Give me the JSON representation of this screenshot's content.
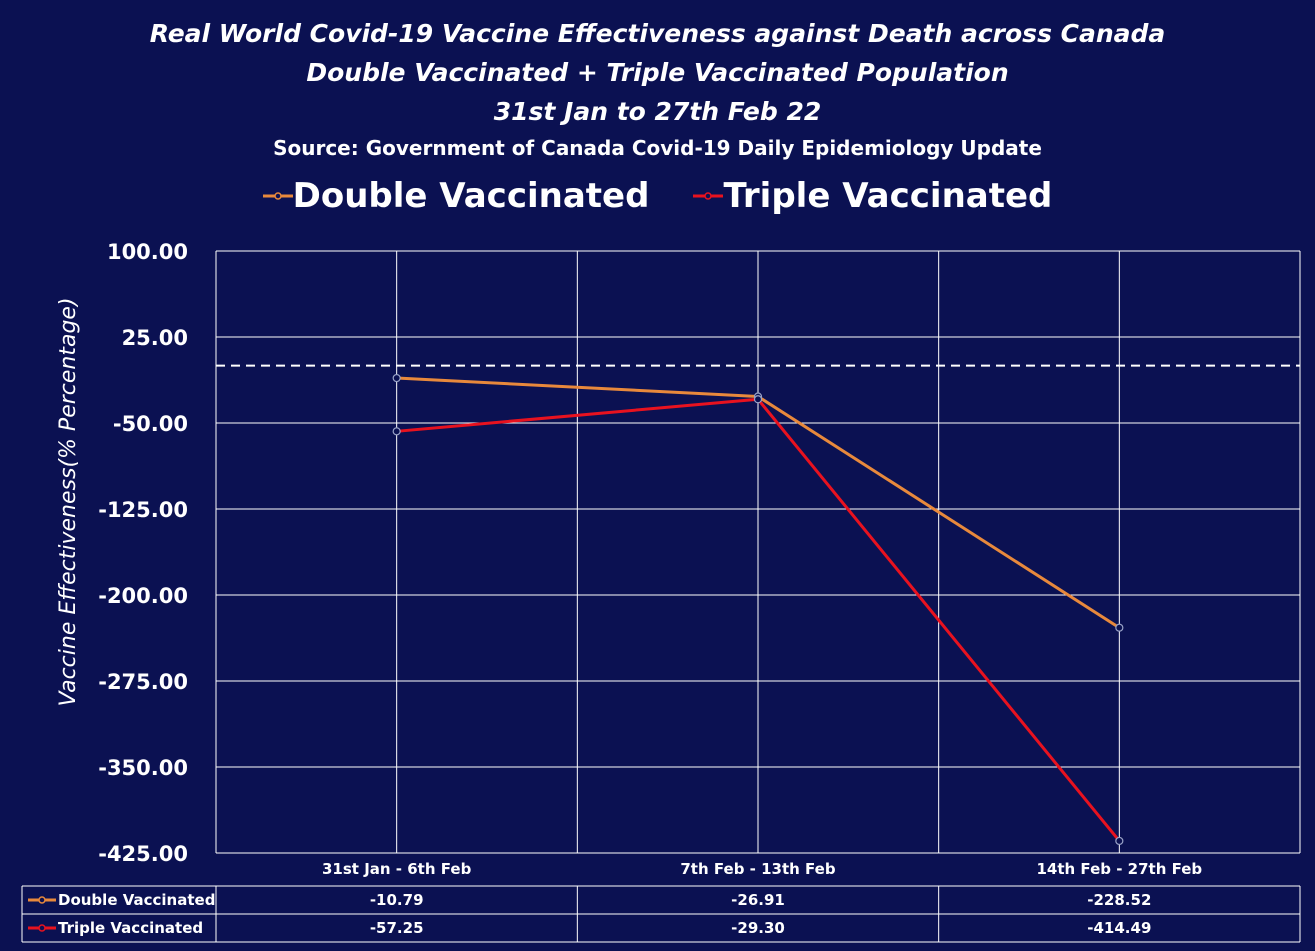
{
  "chart_data": {
    "type": "line",
    "title": "Real World Covid-19 Vaccine Effectiveness against Death across Canada",
    "title_line2": "Double Vaccinated + Triple Vaccinated Population",
    "title_line3": "31st Jan to 27th Feb 22",
    "subtitle": "Source: Government of Canada  Covid-19 Daily Epidemiology Update",
    "ylabel": "Vaccine Effectiveness(% Percentage)",
    "xlabel": "",
    "categories": [
      "31st Jan - 6th Feb",
      "7th Feb - 13th Feb",
      "14th Feb - 27th Feb"
    ],
    "series": [
      {
        "name": "Double Vaccinated",
        "color": "#e8893c",
        "values": [
          -10.79,
          -26.91,
          -228.52
        ],
        "labels": [
          "-10.79",
          "-26.91",
          "-228.52"
        ]
      },
      {
        "name": "Triple Vaccinated",
        "color": "#e8121f",
        "values": [
          -57.25,
          -29.3,
          -414.49
        ],
        "labels": [
          "-57.25",
          "-29.30",
          "-414.49"
        ]
      }
    ],
    "ylim": [
      -425,
      100
    ],
    "yticks": [
      100,
      25,
      -50,
      -125,
      -200,
      -275,
      -350,
      -425
    ],
    "ytick_labels": [
      "100.00",
      "25.00",
      "-50.00",
      "-125.00",
      "-200.00",
      "-275.00",
      "-350.00",
      "-425.00"
    ],
    "reference_line": 0,
    "grid": true,
    "legend_position": "top-center",
    "data_table": true
  }
}
